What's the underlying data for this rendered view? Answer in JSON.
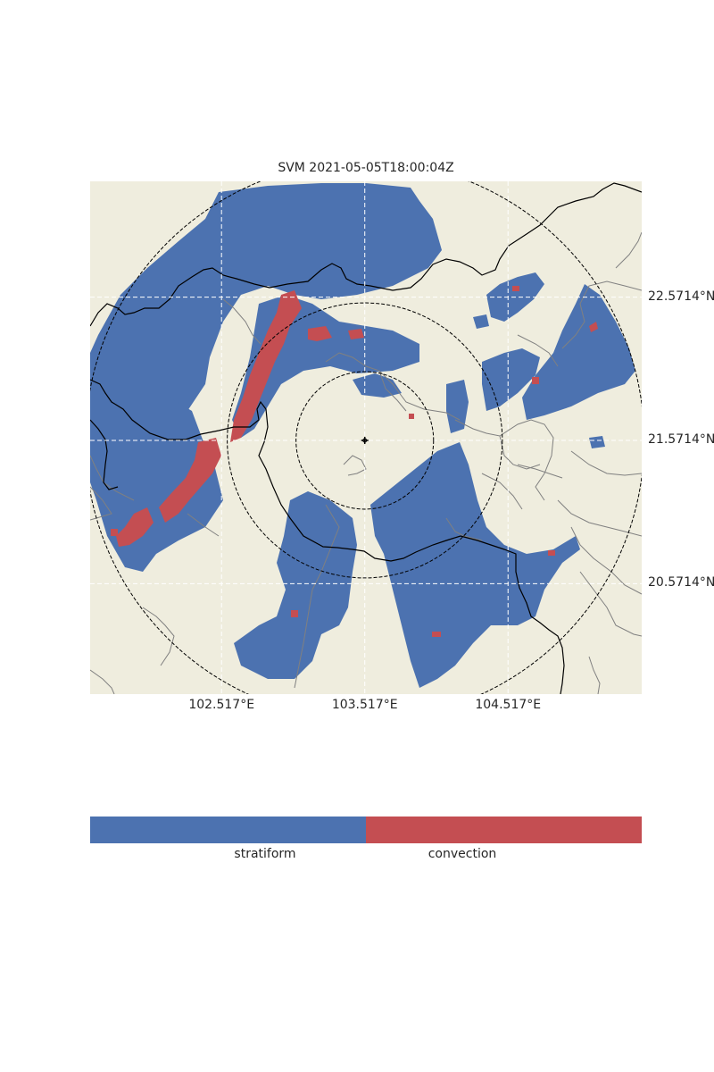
{
  "title": "SVM 2021-05-05T18:00:04Z",
  "colors": {
    "land": "#efedde",
    "stratiform": "#4c72b0",
    "convection": "#c44e52",
    "border": "#000000",
    "province": "#808080",
    "grid": "#ffffff"
  },
  "map": {
    "center_lon": 103.517,
    "center_lat": 21.5714,
    "x_range": [
      101.6,
      105.45
    ],
    "y_range": [
      19.8,
      23.38
    ],
    "range_rings_deg": [
      0.48,
      0.96,
      1.95
    ],
    "radar_site_icon": "radar-crosshair-icon"
  },
  "axes": {
    "lon_ticks": [
      {
        "value": 102.517,
        "label": "102.517°E"
      },
      {
        "value": 103.517,
        "label": "103.517°E"
      },
      {
        "value": 104.517,
        "label": "104.517°E"
      }
    ],
    "lat_ticks": [
      {
        "value": 22.5714,
        "label": "22.5714°N"
      },
      {
        "value": 21.5714,
        "label": "21.5714°N"
      },
      {
        "value": 20.5714,
        "label": "20.5714°N"
      }
    ]
  },
  "legend": {
    "categories": [
      {
        "label": "stratiform",
        "color": "#4c72b0"
      },
      {
        "label": "convection",
        "color": "#c44e52"
      }
    ]
  }
}
